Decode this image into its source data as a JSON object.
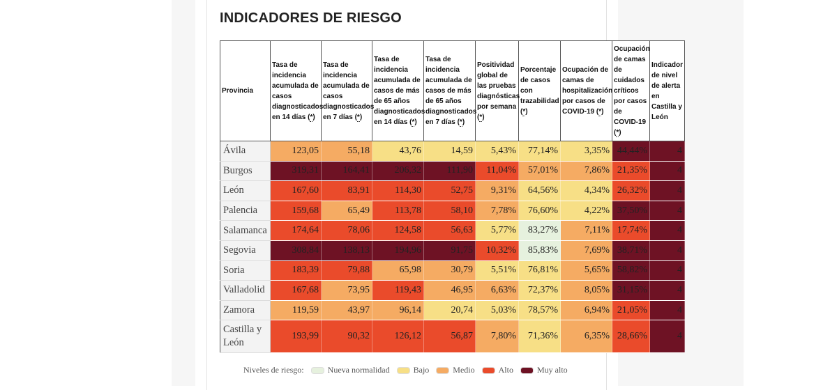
{
  "title": "INDICADORES DE RIESGO",
  "ref_mark": "*",
  "columns": [
    {
      "label": "Provincia"
    },
    {
      "label": "Tasa de incidencia acumulada de casos diagnosticados en 14 días ("
    },
    {
      "label": "Tasa de incidencia acumulada de casos diagnosticados en 7 días ("
    },
    {
      "label": "Tasa de incidencia acumulada de casos de más de 65 años diagnosticados en 14 días ("
    },
    {
      "label": "Tasa de incidencia acumulada de casos de más de 65 años diagnosticados en 7 días ("
    },
    {
      "label": "Positividad global de las pruebas diagnósticas por semana ("
    },
    {
      "label": "Porcentaje de casos con trazabilidad ("
    },
    {
      "label": "Ocupación de camas de hospitalización por casos de COVID-19 ("
    },
    {
      "label": "Ocupación de camas de cuidados críticos por casos de COVID-19 ("
    },
    {
      "label": "Indicador de nivel de alerta en Castilla y León"
    }
  ],
  "rows": [
    {
      "province": "Ávila",
      "cells": [
        {
          "v": "123,05",
          "l": "medio"
        },
        {
          "v": "55,18",
          "l": "medio"
        },
        {
          "v": "43,76",
          "l": "bajo"
        },
        {
          "v": "14,59",
          "l": "bajo"
        },
        {
          "v": "5,43%",
          "l": "bajo"
        },
        {
          "v": "77,14%",
          "l": "bajo"
        },
        {
          "v": "3,35%",
          "l": "bajo"
        },
        {
          "v": "44,44%",
          "l": "muyalto"
        },
        {
          "v": "4",
          "l": "muyalto"
        }
      ]
    },
    {
      "province": "Burgos",
      "cells": [
        {
          "v": "319,31",
          "l": "muyalto"
        },
        {
          "v": "164,41",
          "l": "muyalto"
        },
        {
          "v": "206,32",
          "l": "muyalto"
        },
        {
          "v": "111,90",
          "l": "muyalto"
        },
        {
          "v": "11,04%",
          "l": "alto"
        },
        {
          "v": "57,01%",
          "l": "medio"
        },
        {
          "v": "7,86%",
          "l": "medio"
        },
        {
          "v": "21,35%",
          "l": "alto"
        },
        {
          "v": "4",
          "l": "muyalto"
        }
      ]
    },
    {
      "province": "León",
      "cells": [
        {
          "v": "167,60",
          "l": "alto"
        },
        {
          "v": "83,91",
          "l": "alto"
        },
        {
          "v": "114,30",
          "l": "alto"
        },
        {
          "v": "52,75",
          "l": "alto"
        },
        {
          "v": "9,31%",
          "l": "medio"
        },
        {
          "v": "64,56%",
          "l": "bajo"
        },
        {
          "v": "4,34%",
          "l": "bajo"
        },
        {
          "v": "26,32%",
          "l": "alto"
        },
        {
          "v": "4",
          "l": "muyalto"
        }
      ]
    },
    {
      "province": "Palencia",
      "cells": [
        {
          "v": "159,68",
          "l": "alto"
        },
        {
          "v": "65,49",
          "l": "medio"
        },
        {
          "v": "113,78",
          "l": "alto"
        },
        {
          "v": "58,10",
          "l": "alto"
        },
        {
          "v": "7,78%",
          "l": "medio"
        },
        {
          "v": "76,60%",
          "l": "bajo"
        },
        {
          "v": "4,22%",
          "l": "bajo"
        },
        {
          "v": "37,50%",
          "l": "muyalto"
        },
        {
          "v": "4",
          "l": "muyalto"
        }
      ]
    },
    {
      "province": "Salamanca",
      "cells": [
        {
          "v": "174,64",
          "l": "alto"
        },
        {
          "v": "78,06",
          "l": "alto"
        },
        {
          "v": "124,58",
          "l": "alto"
        },
        {
          "v": "56,63",
          "l": "alto"
        },
        {
          "v": "5,77%",
          "l": "bajo"
        },
        {
          "v": "83,27%",
          "l": "normal"
        },
        {
          "v": "7,11%",
          "l": "medio"
        },
        {
          "v": "17,74%",
          "l": "alto"
        },
        {
          "v": "4",
          "l": "muyalto"
        }
      ]
    },
    {
      "province": "Segovia",
      "cells": [
        {
          "v": "308,84",
          "l": "muyalto"
        },
        {
          "v": "138,13",
          "l": "muyalto"
        },
        {
          "v": "194,96",
          "l": "muyalto"
        },
        {
          "v": "91,75",
          "l": "muyalto"
        },
        {
          "v": "10,32%",
          "l": "alto"
        },
        {
          "v": "85,83%",
          "l": "normal"
        },
        {
          "v": "7,69%",
          "l": "medio"
        },
        {
          "v": "38,71%",
          "l": "muyalto"
        },
        {
          "v": "4",
          "l": "muyalto"
        }
      ]
    },
    {
      "province": "Soria",
      "cells": [
        {
          "v": "183,39",
          "l": "alto"
        },
        {
          "v": "79,88",
          "l": "alto"
        },
        {
          "v": "65,98",
          "l": "medio"
        },
        {
          "v": "30,79",
          "l": "medio"
        },
        {
          "v": "5,51%",
          "l": "bajo"
        },
        {
          "v": "76,81%",
          "l": "bajo"
        },
        {
          "v": "5,65%",
          "l": "medio"
        },
        {
          "v": "58,82%",
          "l": "muyalto"
        },
        {
          "v": "4",
          "l": "muyalto"
        }
      ]
    },
    {
      "province": "Valladolid",
      "cells": [
        {
          "v": "167,68",
          "l": "alto"
        },
        {
          "v": "73,95",
          "l": "medio"
        },
        {
          "v": "119,43",
          "l": "alto"
        },
        {
          "v": "46,95",
          "l": "medio"
        },
        {
          "v": "6,63%",
          "l": "medio"
        },
        {
          "v": "72,37%",
          "l": "bajo"
        },
        {
          "v": "8,05%",
          "l": "medio"
        },
        {
          "v": "31,15%",
          "l": "muyalto"
        },
        {
          "v": "4",
          "l": "muyalto"
        }
      ]
    },
    {
      "province": "Zamora",
      "cells": [
        {
          "v": "119,59",
          "l": "medio"
        },
        {
          "v": "43,97",
          "l": "medio"
        },
        {
          "v": "96,14",
          "l": "medio"
        },
        {
          "v": "20,74",
          "l": "bajo"
        },
        {
          "v": "5,03%",
          "l": "bajo"
        },
        {
          "v": "78,57%",
          "l": "bajo"
        },
        {
          "v": "6,94%",
          "l": "medio"
        },
        {
          "v": "21,05%",
          "l": "alto"
        },
        {
          "v": "4",
          "l": "muyalto"
        }
      ]
    },
    {
      "province": "Castilla y León",
      "cells": [
        {
          "v": "193,99",
          "l": "alto"
        },
        {
          "v": "90,32",
          "l": "alto"
        },
        {
          "v": "126,12",
          "l": "alto"
        },
        {
          "v": "56,87",
          "l": "alto"
        },
        {
          "v": "7,80%",
          "l": "medio"
        },
        {
          "v": "71,36%",
          "l": "bajo"
        },
        {
          "v": "6,35%",
          "l": "medio"
        },
        {
          "v": "28,66%",
          "l": "alto"
        },
        {
          "v": "4",
          "l": "muyalto"
        }
      ]
    }
  ],
  "legend": {
    "label": "Niveles de riesgo:",
    "items": [
      {
        "label": "Nueva normalidad",
        "color": "#e6f1de"
      },
      {
        "label": "Bajo",
        "color": "#f7df86"
      },
      {
        "label": "Medio",
        "color": "#f5ab63"
      },
      {
        "label": "Alto",
        "color": "#ea4b2b"
      },
      {
        "label": "Muy alto",
        "color": "#6e1224"
      }
    ]
  }
}
